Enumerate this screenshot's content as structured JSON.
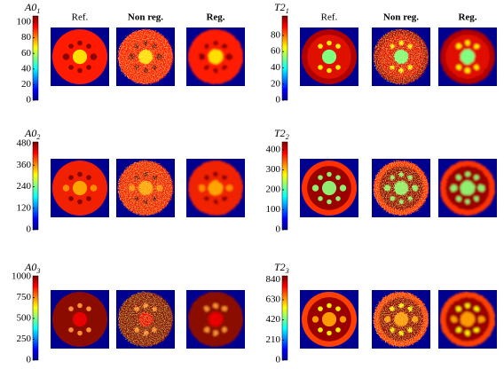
{
  "column_headers": {
    "left": [
      "Ref.",
      "Non reg.",
      "Reg."
    ],
    "right": [
      "Ref.",
      "Non reg.",
      "Reg."
    ]
  },
  "panels": [
    {
      "symbol": "A0",
      "index": "1",
      "range": [
        0,
        108
      ],
      "ticks": [
        0,
        20,
        40,
        60,
        80,
        100
      ]
    },
    {
      "symbol": "A0",
      "index": "2",
      "range": [
        0,
        490
      ],
      "ticks": [
        0,
        120,
        240,
        360,
        480
      ]
    },
    {
      "symbol": "A0",
      "index": "3",
      "range": [
        0,
        1010
      ],
      "ticks": [
        0,
        250,
        500,
        750,
        1000
      ]
    },
    {
      "symbol": "T2",
      "index": "1",
      "range": [
        0,
        104
      ],
      "ticks": [
        0,
        20,
        40,
        60,
        80
      ]
    },
    {
      "symbol": "T2",
      "index": "2",
      "range": [
        0,
        440
      ],
      "ticks": [
        0,
        100,
        200,
        300,
        400
      ]
    },
    {
      "symbol": "T2",
      "index": "3",
      "range": [
        0,
        880
      ],
      "ticks": [
        0,
        210,
        420,
        630,
        840
      ]
    }
  ]
}
